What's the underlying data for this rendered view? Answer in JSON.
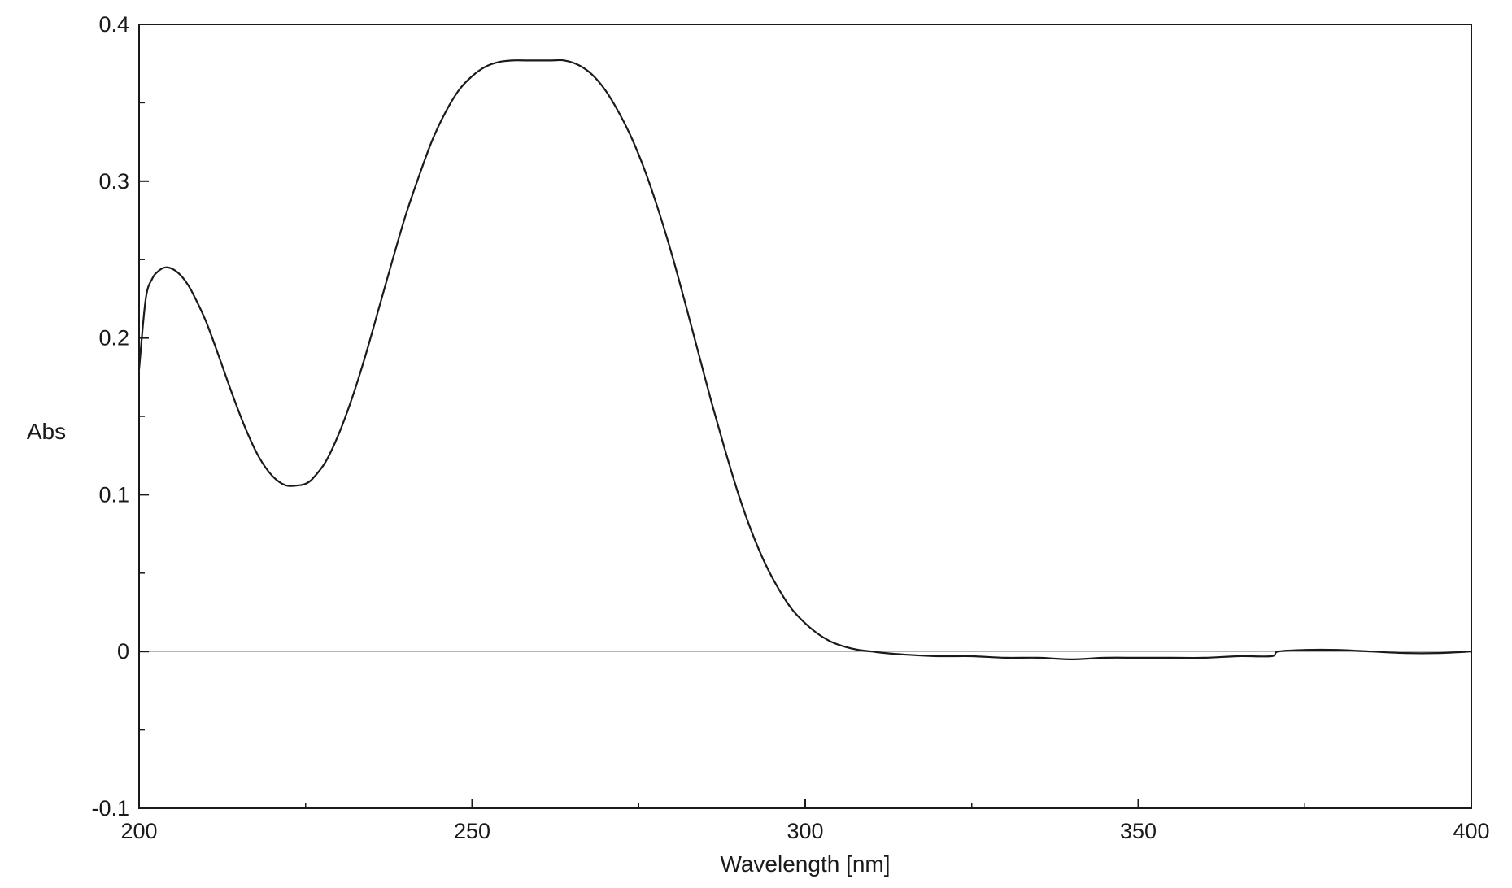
{
  "chart_data": {
    "type": "line",
    "xlabel": "Wavelength [nm]",
    "ylabel": "Abs",
    "xlim": [
      200,
      400
    ],
    "ylim": [
      -0.1,
      0.4
    ],
    "xticks": [
      200,
      250,
      300,
      350,
      400
    ],
    "xtick_labels": [
      "200",
      "250",
      "300",
      "350",
      "400"
    ],
    "yticks": [
      -0.1,
      0,
      0.1,
      0.2,
      0.3,
      0.4
    ],
    "ytick_labels": [
      "-0.1",
      "0",
      "0.1",
      "0.2",
      "0.3",
      "0.4"
    ],
    "zero_line": true,
    "grid": false,
    "line_color": "#1a1a1a",
    "zero_line_color": "#b3b3b3",
    "series": [
      {
        "x": [
          200,
          201,
          202,
          203,
          204,
          205,
          206,
          207,
          208,
          210,
          212,
          214,
          216,
          218,
          220,
          222,
          224,
          225,
          226,
          228,
          230,
          232,
          234,
          236,
          238,
          240,
          242,
          244,
          246,
          248,
          250,
          252,
          254,
          256,
          258,
          260,
          262,
          263.8,
          266,
          268,
          270,
          272,
          274,
          276,
          278,
          280,
          282,
          284,
          286,
          288,
          290,
          292,
          294,
          296,
          298,
          300,
          302,
          304,
          306,
          308,
          310,
          312,
          315,
          320,
          325,
          330,
          335,
          340,
          345,
          350,
          355,
          360,
          365,
          370,
          371,
          375,
          380,
          385,
          390,
          395,
          400
        ],
        "y": [
          0.18,
          0.225,
          0.238,
          0.243,
          0.245,
          0.244,
          0.241,
          0.236,
          0.229,
          0.211,
          0.188,
          0.164,
          0.142,
          0.124,
          0.112,
          0.106,
          0.106,
          0.107,
          0.11,
          0.121,
          0.139,
          0.162,
          0.189,
          0.219,
          0.249,
          0.278,
          0.303,
          0.326,
          0.344,
          0.358,
          0.367,
          0.373,
          0.376,
          0.377,
          0.377,
          0.377,
          0.377,
          0.377,
          0.374,
          0.368,
          0.358,
          0.344,
          0.327,
          0.306,
          0.281,
          0.253,
          0.222,
          0.19,
          0.158,
          0.128,
          0.1,
          0.076,
          0.056,
          0.04,
          0.027,
          0.018,
          0.011,
          0.006,
          0.003,
          0.001,
          0.0,
          -0.001,
          -0.002,
          -0.003,
          -0.003,
          -0.004,
          -0.004,
          -0.005,
          -0.004,
          -0.004,
          -0.004,
          -0.004,
          -0.003,
          -0.003,
          0.0,
          0.001,
          0.001,
          0.0,
          -0.001,
          -0.001,
          0.0
        ]
      }
    ]
  }
}
